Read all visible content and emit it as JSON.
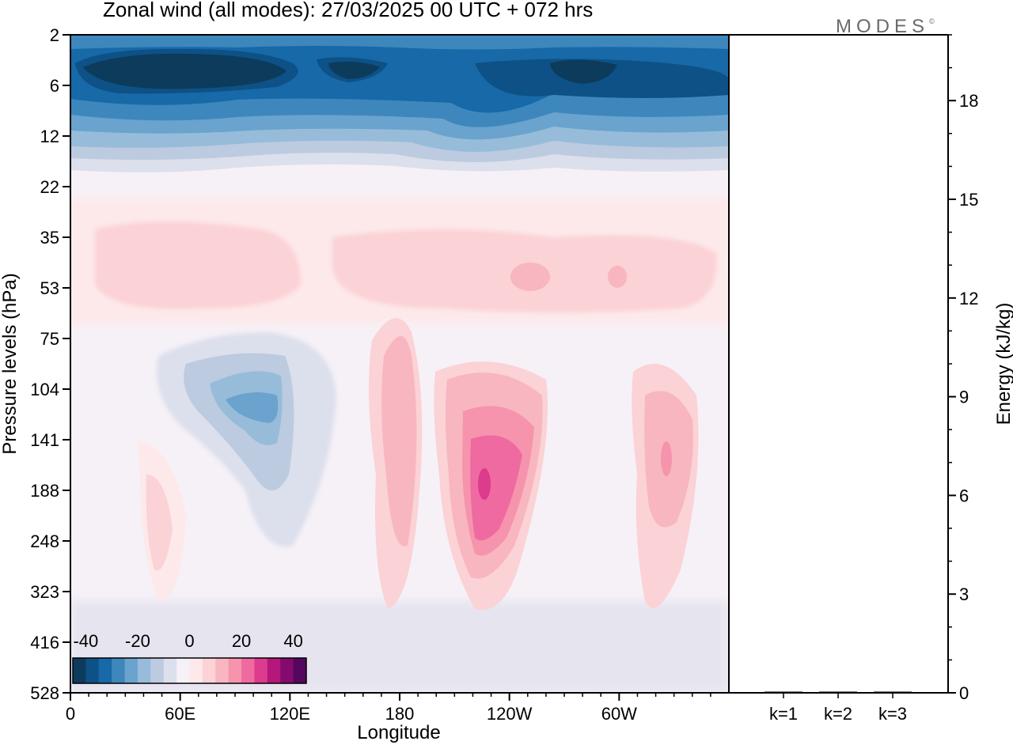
{
  "title": "Zonal wind (all modes):  27/03/2025  00 UTC  + 072 hrs",
  "logo": "MODES",
  "logo_mark": "©",
  "chart_data": [
    {
      "type": "heatmap",
      "title": "Zonal wind (all modes):  27/03/2025  00 UTC  + 072 hrs",
      "xlabel": "Longitude",
      "ylabel": "Pressure levels (hPa)",
      "x_ticks": [
        "0",
        "60E",
        "120E",
        "180",
        "120W",
        "60W"
      ],
      "x_tick_values": [
        0,
        60,
        120,
        180,
        240,
        300
      ],
      "xlim": [
        0,
        360
      ],
      "y_ticks": [
        "2",
        "6",
        "12",
        "22",
        "35",
        "53",
        "75",
        "104",
        "141",
        "188",
        "248",
        "323",
        "416",
        "528"
      ],
      "y_axis": "inverted, levels equally spaced",
      "colorbar": {
        "ticks": [
          "-40",
          "-20",
          "0",
          "20",
          "40"
        ],
        "tick_values": [
          -40,
          -20,
          0,
          20,
          40
        ],
        "range": [
          -45,
          45
        ],
        "step": 5,
        "colors": [
          "#0c3b5c",
          "#0d5186",
          "#1769a8",
          "#3d87bd",
          "#6aa3cd",
          "#97bcd9",
          "#bccbe0",
          "#dcdfec",
          "#f6f1f7",
          "#fde9ea",
          "#fbd2d5",
          "#f8b6c0",
          "#f594ac",
          "#ef6aa0",
          "#dd3b8e",
          "#b5177a",
          "#850a6e",
          "#55065f"
        ]
      },
      "features": [
        {
          "label": "easterly core upper levels",
          "approx_value": -40
        },
        {
          "label": "westerly jet near 120W, 150-200 hPa",
          "approx_value": 35
        },
        {
          "label": "westerly jet near 165E",
          "approx_value": 20
        },
        {
          "label": "westerly jet near 40W",
          "approx_value": 25
        },
        {
          "label": "easterly pocket near 100E, 100-140 hPa",
          "approx_value": -20
        }
      ]
    },
    {
      "type": "bar",
      "categories": [
        "k=1",
        "k=2",
        "k=3"
      ],
      "values": [
        0.03,
        0.03,
        0.02
      ],
      "ylabel": "Energy (kJ/kg)",
      "y_ticks": [
        "0",
        "3",
        "6",
        "9",
        "12",
        "15",
        "18"
      ],
      "ylim": [
        0,
        20
      ]
    }
  ]
}
